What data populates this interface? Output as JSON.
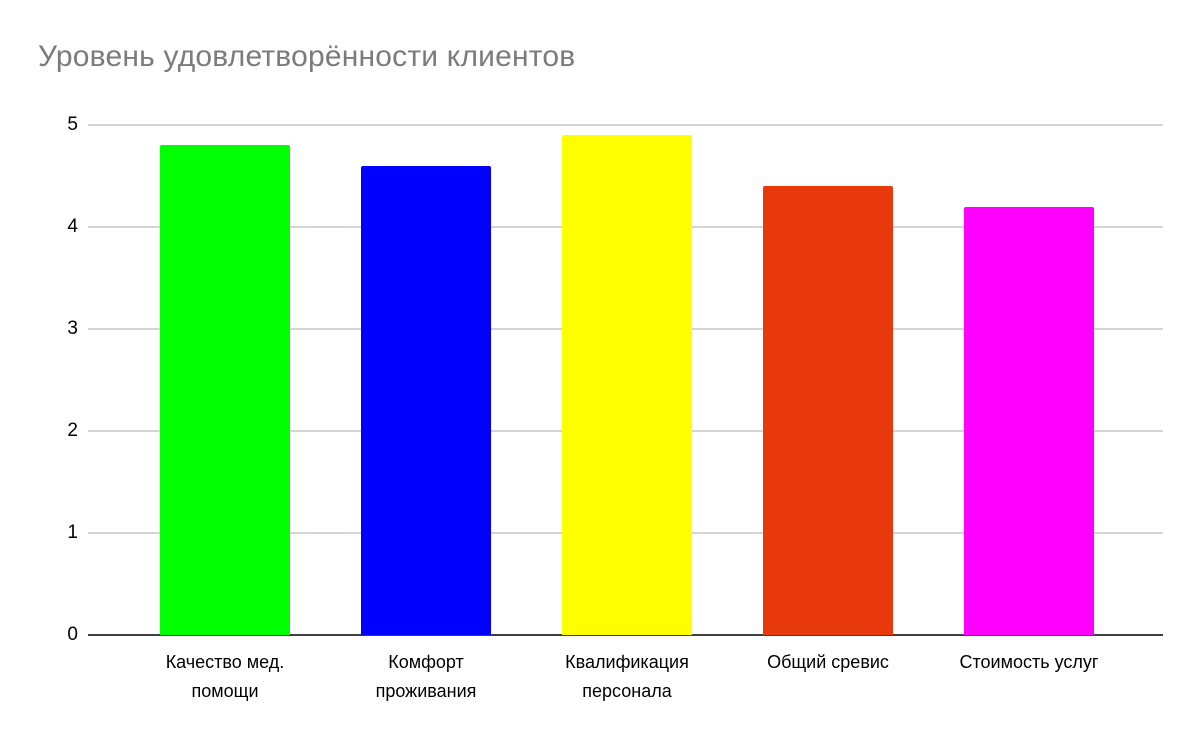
{
  "chart_data": {
    "type": "bar",
    "title": "Уровень удовлетворённости клиентов",
    "categories": [
      "Качество мед. помощи",
      "Комфорт проживания",
      "Квалификация персонала",
      "Общий сревис",
      "Стоимость услуг"
    ],
    "categories_lines": [
      [
        "Качество мед.",
        "помощи"
      ],
      [
        "Комфорт",
        "проживания"
      ],
      [
        "Квалификация",
        "персонала"
      ],
      [
        "Общий сревис"
      ],
      [
        "Стоимость услуг"
      ]
    ],
    "values": [
      4.8,
      4.6,
      4.9,
      4.4,
      4.2
    ],
    "colors": [
      "#00ff00",
      "#0000ff",
      "#ffff00",
      "#e8390d",
      "#ff00ff"
    ],
    "xlabel": "",
    "ylabel": "",
    "ylim": [
      0,
      5
    ],
    "yticks": [
      0,
      1,
      2,
      3,
      4,
      5
    ],
    "grid": "horizontal",
    "legend": "none",
    "title_color": "#7b7b7b",
    "grid_color": "#d5d5d5",
    "baseline_color": "#3f3f3f",
    "background": "#ffffff"
  }
}
